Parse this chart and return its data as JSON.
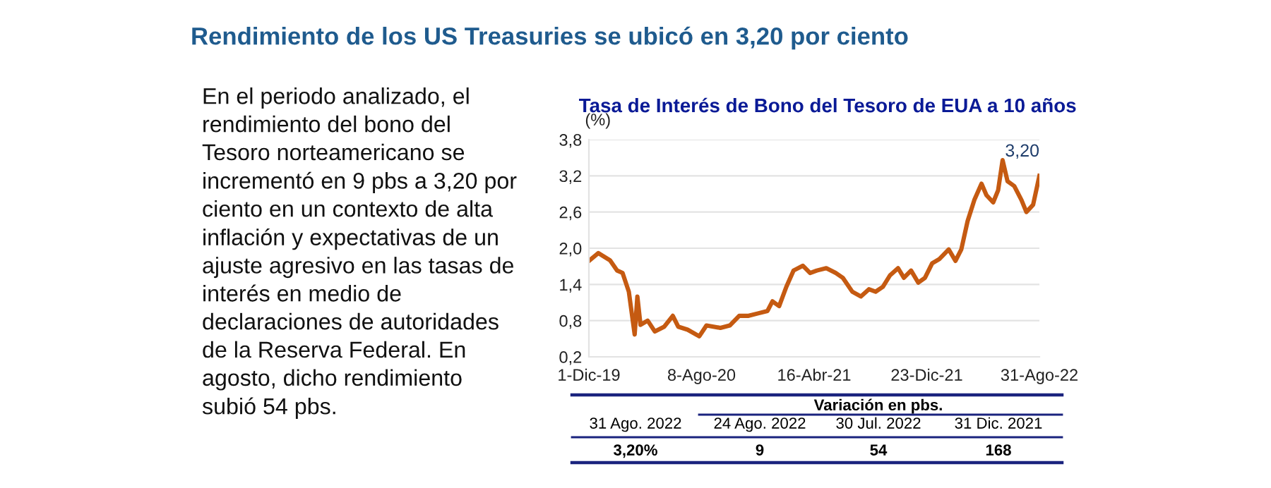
{
  "chart_data": {
    "type": "line",
    "title": "Tasa de Interés de Bono del Tesoro de EUA a 10 años",
    "ylabel": "(%)",
    "x": [
      "2019-12-01",
      "2019-12-22",
      "2020-01-17",
      "2020-02-02",
      "2020-02-14",
      "2020-02-28",
      "2020-03-12",
      "2020-03-18",
      "2020-03-25",
      "2020-04-10",
      "2020-04-26",
      "2020-05-17",
      "2020-06-05",
      "2020-06-17",
      "2020-07-08",
      "2020-08-03",
      "2020-08-19",
      "2020-09-19",
      "2020-10-10",
      "2020-10-31",
      "2020-11-21",
      "2020-12-12",
      "2021-01-02",
      "2021-01-13",
      "2021-01-28",
      "2021-02-13",
      "2021-03-01",
      "2021-03-22",
      "2021-04-07",
      "2021-04-22",
      "2021-05-13",
      "2021-06-03",
      "2021-06-19",
      "2021-07-10",
      "2021-07-29",
      "2021-08-16",
      "2021-08-31",
      "2021-09-16",
      "2021-10-02",
      "2021-10-20",
      "2021-11-02",
      "2021-11-18",
      "2021-12-04",
      "2021-12-19",
      "2022-01-04",
      "2022-01-20",
      "2022-02-10",
      "2022-02-25",
      "2022-03-10",
      "2022-03-24",
      "2022-04-08",
      "2022-04-24",
      "2022-05-05",
      "2022-05-20",
      "2022-05-31",
      "2022-06-10",
      "2022-06-21",
      "2022-07-06",
      "2022-07-22",
      "2022-08-02",
      "2022-08-17",
      "2022-08-31"
    ],
    "series": [
      {
        "color": "#c55a11",
        "values": [
          1.79,
          1.92,
          1.8,
          1.63,
          1.59,
          1.28,
          0.57,
          1.2,
          0.73,
          0.8,
          0.62,
          0.7,
          0.88,
          0.7,
          0.65,
          0.54,
          0.72,
          0.68,
          0.72,
          0.88,
          0.88,
          0.92,
          0.96,
          1.12,
          1.04,
          1.36,
          1.63,
          1.71,
          1.59,
          1.63,
          1.67,
          1.59,
          1.51,
          1.28,
          1.2,
          1.32,
          1.28,
          1.36,
          1.55,
          1.67,
          1.51,
          1.63,
          1.43,
          1.51,
          1.75,
          1.82,
          1.98,
          1.79,
          1.98,
          2.45,
          2.8,
          3.07,
          2.88,
          2.76,
          2.96,
          3.46,
          3.11,
          3.03,
          2.8,
          2.6,
          2.72,
          3.2
        ]
      }
    ],
    "xlim": [
      "2019-12-01",
      "2022-08-31"
    ],
    "xticks": [
      {
        "value": "2019-12-01",
        "label": "1-Dic-19"
      },
      {
        "value": "2020-08-08",
        "label": "8-Ago-20"
      },
      {
        "value": "2021-04-16",
        "label": "16-Abr-21"
      },
      {
        "value": "2021-12-23",
        "label": "23-Dic-21"
      },
      {
        "value": "2022-08-31",
        "label": "31-Ago-22"
      }
    ],
    "ylim": [
      0.2,
      3.8
    ],
    "yticks": [
      {
        "value": 0.2,
        "label": "0,2"
      },
      {
        "value": 0.8,
        "label": "0,8"
      },
      {
        "value": 1.4,
        "label": "1,4"
      },
      {
        "value": 2.0,
        "label": "2,0"
      },
      {
        "value": 2.6,
        "label": "2,6"
      },
      {
        "value": 3.2,
        "label": "3,2"
      },
      {
        "value": 3.8,
        "label": "3,8"
      }
    ],
    "grid": "y",
    "marker": "none",
    "line_style": "solid",
    "annotations": [
      "Rendimiento de los US Treasuries se ubicó en 3,20 por ciento",
      "En el periodo analizado, el\nrendimiento del bono del\nTesoro norteamericano se\nincrementó en 9 pbs a 3,20 por\nciento en un contexto de alta\ninflación y expectativas de un\najuste agresivo en las tasas de\ninterés en medio de\ndeclaraciones de autoridades\nde la Reserva Federal. En\nagosto, dicho rendimiento\nsubió 54 pbs.",
      "Variación en pbs.",
      "31 Ago. 2022",
      "24 Ago. 2022",
      "30 Jul. 2022",
      "31 Dic. 2021",
      "3,20%",
      "9",
      "54",
      "168",
      {
        "text": "3,20",
        "x": "2022-08-31",
        "y": 3.2
      }
    ]
  }
}
